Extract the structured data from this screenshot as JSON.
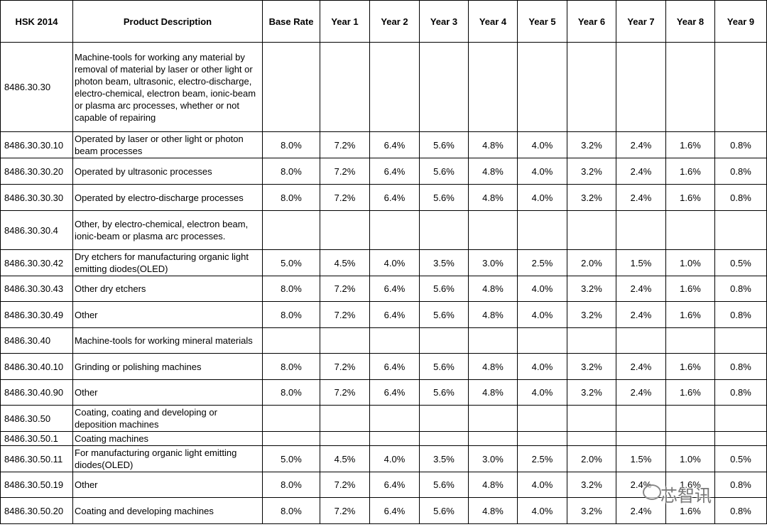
{
  "table": {
    "header": [
      "HSK 2014",
      "Product Description",
      "Base Rate",
      "Year 1",
      "Year 2",
      "Year 3",
      "Year 4",
      "Year 5",
      "Year 6",
      "Year 7",
      "Year 8",
      "Year 9"
    ],
    "rows": [
      [
        "8486.30.30",
        "Machine-tools for working any material by removal of material by laser or other light or photon beam, ultrasonic, electro-discharge, electro-chemical, electron beam, ionic-beam or plasma arc processes, whether or not capable of repairing",
        null,
        null,
        null,
        null,
        null,
        null,
        null,
        null,
        null,
        null
      ],
      [
        "8486.30.30.10",
        "Operated by laser or other light or photon beam processes",
        "8.0%",
        "7.2%",
        "6.4%",
        "5.6%",
        "4.8%",
        "4.0%",
        "3.2%",
        "2.4%",
        "1.6%",
        "0.8%"
      ],
      [
        "8486.30.30.20",
        "Operated by ultrasonic processes",
        "8.0%",
        "7.2%",
        "6.4%",
        "5.6%",
        "4.8%",
        "4.0%",
        "3.2%",
        "2.4%",
        "1.6%",
        "0.8%"
      ],
      [
        "8486.30.30.30",
        "Operated by electro-discharge processes",
        "8.0%",
        "7.2%",
        "6.4%",
        "5.6%",
        "4.8%",
        "4.0%",
        "3.2%",
        "2.4%",
        "1.6%",
        "0.8%"
      ],
      [
        "8486.30.30.4",
        "Other, by electro-chemical, electron beam, ionic-beam or plasma arc processes.",
        null,
        null,
        null,
        null,
        null,
        null,
        null,
        null,
        null,
        null
      ],
      [
        "8486.30.30.42",
        "Dry etchers for manufacturing organic light emitting diodes(OLED)",
        "5.0%",
        "4.5%",
        "4.0%",
        "3.5%",
        "3.0%",
        "2.5%",
        "2.0%",
        "1.5%",
        "1.0%",
        "0.5%"
      ],
      [
        "8486.30.30.43",
        "Other dry etchers",
        "8.0%",
        "7.2%",
        "6.4%",
        "5.6%",
        "4.8%",
        "4.0%",
        "3.2%",
        "2.4%",
        "1.6%",
        "0.8%"
      ],
      [
        "8486.30.30.49",
        "Other",
        "8.0%",
        "7.2%",
        "6.4%",
        "5.6%",
        "4.8%",
        "4.0%",
        "3.2%",
        "2.4%",
        "1.6%",
        "0.8%"
      ],
      [
        "8486.30.40",
        "Machine-tools for working mineral materials",
        null,
        null,
        null,
        null,
        null,
        null,
        null,
        null,
        null,
        null
      ],
      [
        "8486.30.40.10",
        "Grinding  or polishing machines",
        "8.0%",
        "7.2%",
        "6.4%",
        "5.6%",
        "4.8%",
        "4.0%",
        "3.2%",
        "2.4%",
        "1.6%",
        "0.8%"
      ],
      [
        "8486.30.40.90",
        "Other",
        "8.0%",
        "7.2%",
        "6.4%",
        "5.6%",
        "4.8%",
        "4.0%",
        "3.2%",
        "2.4%",
        "1.6%",
        "0.8%"
      ],
      [
        "8486.30.50",
        "Coating, coating and developing or deposition machines",
        null,
        null,
        null,
        null,
        null,
        null,
        null,
        null,
        null,
        null
      ],
      [
        "8486.30.50.1",
        "Coating machines",
        null,
        null,
        null,
        null,
        null,
        null,
        null,
        null,
        null,
        null
      ],
      [
        "8486.30.50.11",
        "For manufacturing organic light emitting diodes(OLED)",
        "5.0%",
        "4.5%",
        "4.0%",
        "3.5%",
        "3.0%",
        "2.5%",
        "2.0%",
        "1.5%",
        "1.0%",
        "0.5%"
      ],
      [
        "8486.30.50.19",
        "Other",
        "8.0%",
        "7.2%",
        "6.4%",
        "5.6%",
        "4.8%",
        "4.0%",
        "3.2%",
        "2.4%",
        "1.6%",
        "0.8%"
      ],
      [
        "8486.30.50.20",
        "Coating and developing machines",
        "8.0%",
        "7.2%",
        "6.4%",
        "5.6%",
        "4.8%",
        "4.0%",
        "3.2%",
        "2.4%",
        "1.6%",
        "0.8%"
      ]
    ]
  },
  "watermark": "芯智讯"
}
